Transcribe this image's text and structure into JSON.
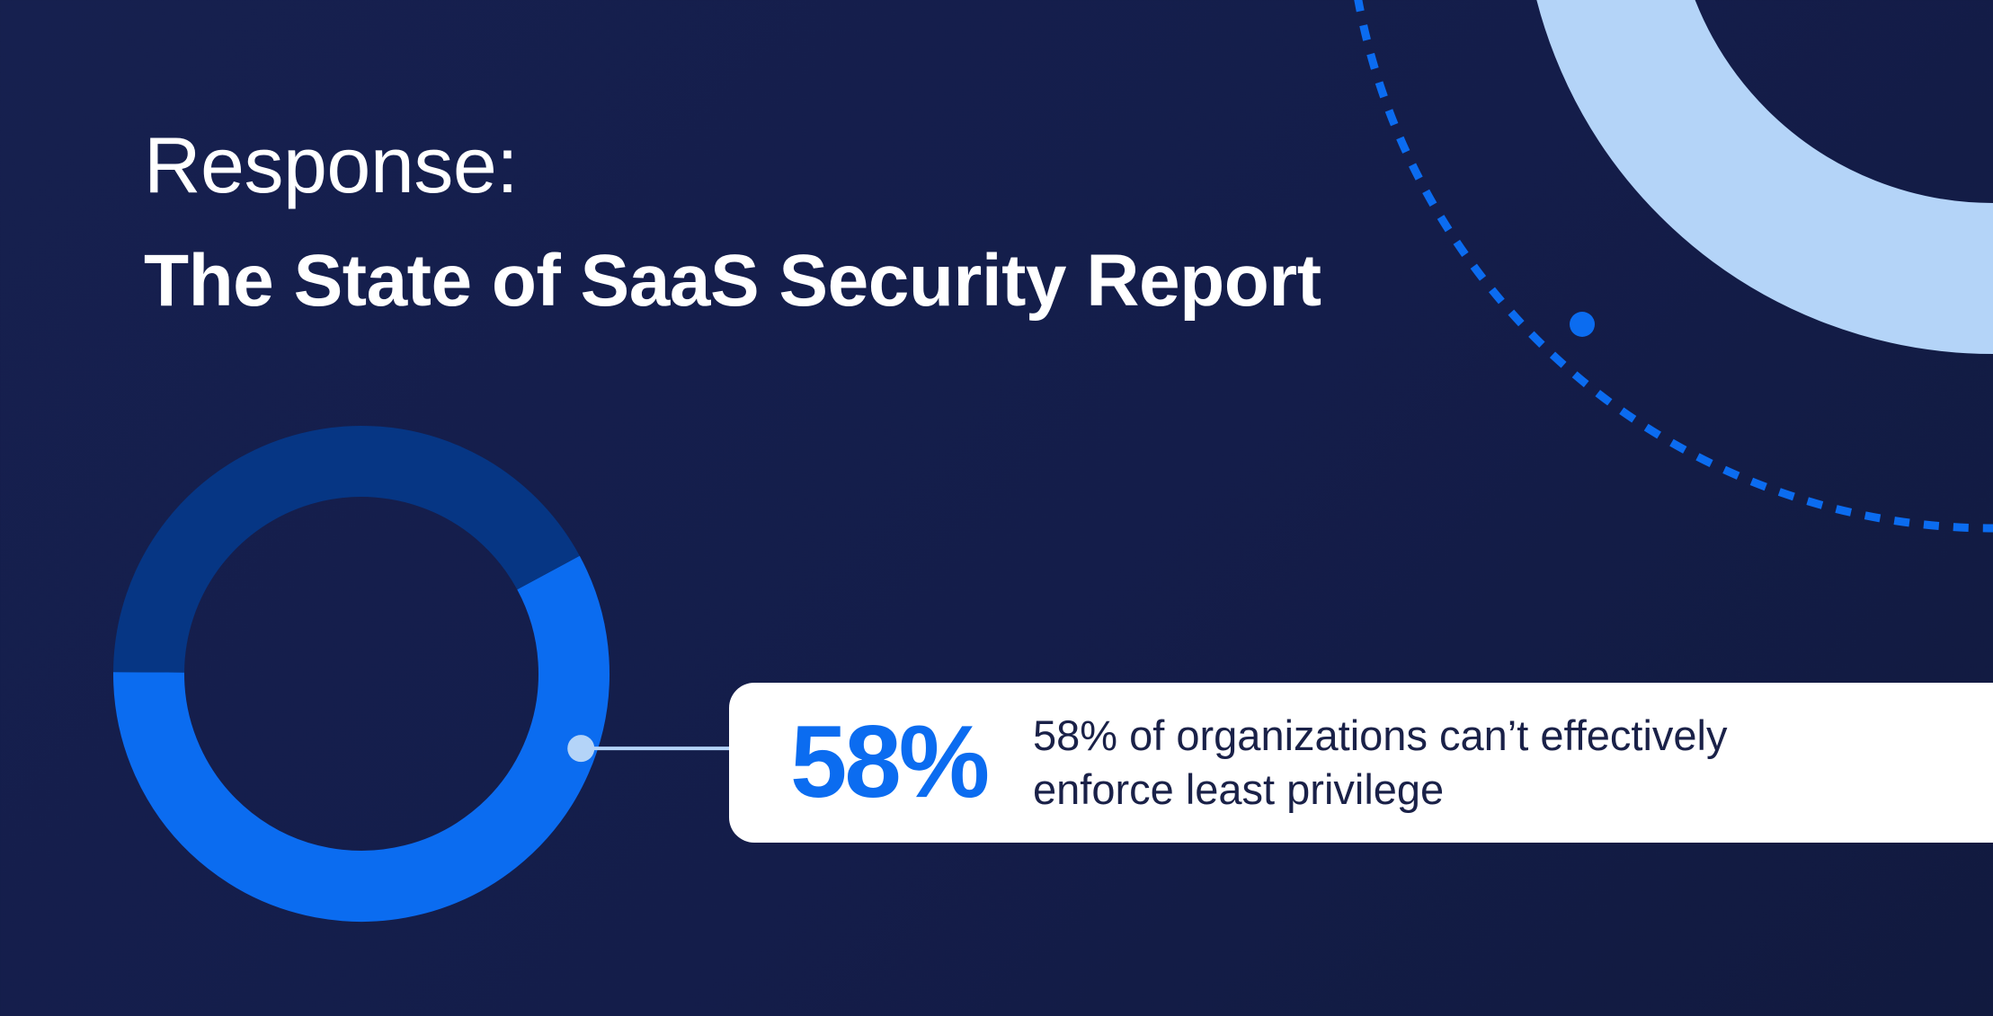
{
  "header": {
    "subtitle": "Response:",
    "title": "The State of SaaS Security Report"
  },
  "chart_data": {
    "type": "pie",
    "style": "donut",
    "values": [
      58,
      42
    ],
    "colors": [
      "#0b6cf0",
      "#063684"
    ]
  },
  "callout": {
    "stat": "58%",
    "description": "58% of organizations can’t effectively enforce least privilege",
    "accent_color": "#0b6cf0"
  },
  "colors": {
    "background": "#151e4b",
    "light_ring": "#b4d4f8",
    "dotted_arc": "#0b6cf0",
    "connector": "#b4d4f8"
  }
}
